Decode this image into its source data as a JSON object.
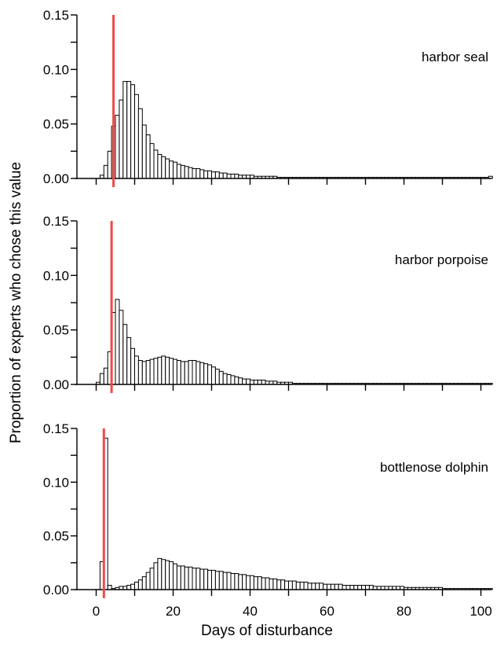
{
  "chart_data": {
    "type": "bar",
    "xlabel": "Days of disturbance",
    "ylabel": "Proportion of experts who chose this value",
    "xlim": [
      0,
      103
    ],
    "ylim": [
      0,
      0.15
    ],
    "x_ticks": [
      0,
      20,
      40,
      60,
      80,
      100
    ],
    "x_tick_labels": [
      "0",
      "20",
      "40",
      "60",
      "80",
      "100"
    ],
    "y_ticks": [
      0,
      0.05,
      0.1,
      0.15
    ],
    "y_tick_labels": [
      "0.00",
      "0.05",
      "0.10",
      "0.15"
    ],
    "bin_width": 1,
    "ref_line_color": "#f04a4a",
    "panels": [
      {
        "name": "harbor seal",
        "ref_line_x": 4.5,
        "bins": [
          [
            1,
            0.003
          ],
          [
            2,
            0.012
          ],
          [
            3,
            0.025
          ],
          [
            4,
            0.048
          ],
          [
            5,
            0.058
          ],
          [
            6,
            0.072
          ],
          [
            7,
            0.089
          ],
          [
            8,
            0.089
          ],
          [
            9,
            0.086
          ],
          [
            10,
            0.077
          ],
          [
            11,
            0.064
          ],
          [
            12,
            0.049
          ],
          [
            13,
            0.04
          ],
          [
            14,
            0.032
          ],
          [
            15,
            0.026
          ],
          [
            16,
            0.022
          ],
          [
            17,
            0.02
          ],
          [
            18,
            0.018
          ],
          [
            19,
            0.016
          ],
          [
            20,
            0.015
          ],
          [
            21,
            0.013
          ],
          [
            22,
            0.012
          ],
          [
            23,
            0.011
          ],
          [
            24,
            0.01
          ],
          [
            25,
            0.009
          ],
          [
            26,
            0.009
          ],
          [
            27,
            0.008
          ],
          [
            28,
            0.007
          ],
          [
            29,
            0.007
          ],
          [
            30,
            0.006
          ],
          [
            31,
            0.006
          ],
          [
            32,
            0.005
          ],
          [
            33,
            0.005
          ],
          [
            34,
            0.004
          ],
          [
            35,
            0.004
          ],
          [
            36,
            0.004
          ],
          [
            37,
            0.003
          ],
          [
            38,
            0.003
          ],
          [
            39,
            0.003
          ],
          [
            40,
            0.003
          ],
          [
            41,
            0.002
          ],
          [
            42,
            0.002
          ],
          [
            43,
            0.002
          ],
          [
            44,
            0.002
          ],
          [
            45,
            0.002
          ],
          [
            46,
            0.002
          ],
          [
            47,
            0.001
          ],
          [
            48,
            0.001
          ],
          [
            49,
            0.001
          ],
          [
            50,
            0.001
          ],
          [
            51,
            0.001
          ],
          [
            52,
            0.001
          ],
          [
            53,
            0.001
          ],
          [
            54,
            0.001
          ],
          [
            55,
            0.001
          ],
          [
            56,
            0.001
          ],
          [
            57,
            0.001
          ],
          [
            58,
            0.001
          ],
          [
            59,
            0.001
          ],
          [
            60,
            0.001
          ],
          [
            61,
            0.001
          ],
          [
            62,
            0.001
          ],
          [
            63,
            0.001
          ],
          [
            64,
            0.001
          ],
          [
            65,
            0.001
          ],
          [
            66,
            0.001
          ],
          [
            67,
            0.001
          ],
          [
            68,
            0.001
          ],
          [
            69,
            0.001
          ],
          [
            70,
            0.001
          ],
          [
            71,
            0.001
          ],
          [
            72,
            0.001
          ],
          [
            73,
            0.001
          ],
          [
            74,
            0.001
          ],
          [
            75,
            0.001
          ],
          [
            76,
            0.001
          ],
          [
            77,
            0.001
          ],
          [
            78,
            0.001
          ],
          [
            79,
            0.001
          ],
          [
            80,
            0.001
          ],
          [
            81,
            0.001
          ],
          [
            82,
            0.001
          ],
          [
            83,
            0.001
          ],
          [
            84,
            0.001
          ],
          [
            85,
            0.001
          ],
          [
            86,
            0.001
          ],
          [
            87,
            0.001
          ],
          [
            88,
            0.001
          ],
          [
            89,
            0.001
          ],
          [
            90,
            0.001
          ],
          [
            91,
            0.001
          ],
          [
            92,
            0.001
          ],
          [
            93,
            0.001
          ],
          [
            94,
            0.001
          ],
          [
            95,
            0.001
          ],
          [
            96,
            0.001
          ],
          [
            97,
            0.001
          ],
          [
            98,
            0.001
          ],
          [
            99,
            0.001
          ],
          [
            100,
            0.001
          ],
          [
            101,
            0.001
          ],
          [
            102,
            0.002
          ]
        ]
      },
      {
        "name": "harbor porpoise",
        "ref_line_x": 4,
        "bins": [
          [
            0,
            0.002
          ],
          [
            1,
            0.01
          ],
          [
            2,
            0.015
          ],
          [
            3,
            0.03
          ],
          [
            4,
            0.066
          ],
          [
            5,
            0.078
          ],
          [
            6,
            0.068
          ],
          [
            7,
            0.055
          ],
          [
            8,
            0.043
          ],
          [
            9,
            0.033
          ],
          [
            10,
            0.026
          ],
          [
            11,
            0.022
          ],
          [
            12,
            0.021
          ],
          [
            13,
            0.022
          ],
          [
            14,
            0.023
          ],
          [
            15,
            0.024
          ],
          [
            16,
            0.025
          ],
          [
            17,
            0.026
          ],
          [
            18,
            0.025
          ],
          [
            19,
            0.024
          ],
          [
            20,
            0.023
          ],
          [
            21,
            0.022
          ],
          [
            22,
            0.021
          ],
          [
            23,
            0.021
          ],
          [
            24,
            0.022
          ],
          [
            25,
            0.022
          ],
          [
            26,
            0.021
          ],
          [
            27,
            0.02
          ],
          [
            28,
            0.019
          ],
          [
            29,
            0.018
          ],
          [
            30,
            0.016
          ],
          [
            31,
            0.014
          ],
          [
            32,
            0.012
          ],
          [
            33,
            0.01
          ],
          [
            34,
            0.009
          ],
          [
            35,
            0.008
          ],
          [
            36,
            0.007
          ],
          [
            37,
            0.006
          ],
          [
            38,
            0.005
          ],
          [
            39,
            0.005
          ],
          [
            40,
            0.004
          ],
          [
            41,
            0.004
          ],
          [
            42,
            0.004
          ],
          [
            43,
            0.004
          ],
          [
            44,
            0.003
          ],
          [
            45,
            0.003
          ],
          [
            46,
            0.003
          ],
          [
            47,
            0.002
          ],
          [
            48,
            0.002
          ],
          [
            49,
            0.002
          ],
          [
            50,
            0.002
          ],
          [
            51,
            0.001
          ],
          [
            52,
            0.001
          ],
          [
            53,
            0.001
          ],
          [
            54,
            0.001
          ],
          [
            55,
            0.001
          ],
          [
            56,
            0.001
          ],
          [
            57,
            0.001
          ],
          [
            58,
            0.001
          ],
          [
            59,
            0.001
          ],
          [
            60,
            0.001
          ],
          [
            61,
            0.001
          ],
          [
            62,
            0.001
          ],
          [
            63,
            0.001
          ],
          [
            64,
            0.001
          ],
          [
            65,
            0.001
          ],
          [
            66,
            0.001
          ],
          [
            67,
            0.001
          ],
          [
            68,
            0.001
          ],
          [
            69,
            0.001
          ],
          [
            70,
            0.001
          ],
          [
            71,
            0.001
          ],
          [
            72,
            0.001
          ],
          [
            73,
            0.001
          ],
          [
            74,
            0.001
          ],
          [
            75,
            0.001
          ],
          [
            76,
            0.001
          ],
          [
            77,
            0.001
          ],
          [
            78,
            0.001
          ],
          [
            79,
            0.001
          ],
          [
            80,
            0.001
          ],
          [
            81,
            0.001
          ],
          [
            82,
            0.001
          ],
          [
            83,
            0.001
          ],
          [
            84,
            0.001
          ],
          [
            85,
            0.001
          ],
          [
            86,
            0.001
          ],
          [
            87,
            0.001
          ],
          [
            88,
            0.001
          ],
          [
            89,
            0.001
          ],
          [
            90,
            0.001
          ],
          [
            91,
            0.001
          ],
          [
            92,
            0.001
          ],
          [
            93,
            0.001
          ],
          [
            94,
            0.001
          ],
          [
            95,
            0.001
          ],
          [
            96,
            0.001
          ],
          [
            97,
            0.001
          ],
          [
            98,
            0.001
          ],
          [
            99,
            0.001
          ],
          [
            100,
            0.001
          ],
          [
            101,
            0.001
          ],
          [
            102,
            0.001
          ]
        ]
      },
      {
        "name": "bottlenose dolphin",
        "ref_line_x": 2,
        "bins": [
          [
            1,
            0.026
          ],
          [
            2,
            0.141
          ],
          [
            3,
            0.004
          ],
          [
            4,
            0.001
          ],
          [
            5,
            0.002
          ],
          [
            6,
            0.003
          ],
          [
            7,
            0.003
          ],
          [
            8,
            0.004
          ],
          [
            9,
            0.005
          ],
          [
            10,
            0.007
          ],
          [
            11,
            0.009
          ],
          [
            12,
            0.012
          ],
          [
            13,
            0.016
          ],
          [
            14,
            0.02
          ],
          [
            15,
            0.025
          ],
          [
            16,
            0.029
          ],
          [
            17,
            0.028
          ],
          [
            18,
            0.027
          ],
          [
            19,
            0.026
          ],
          [
            20,
            0.024
          ],
          [
            21,
            0.022
          ],
          [
            22,
            0.022
          ],
          [
            23,
            0.021
          ],
          [
            24,
            0.021
          ],
          [
            25,
            0.02
          ],
          [
            26,
            0.02
          ],
          [
            27,
            0.019
          ],
          [
            28,
            0.019
          ],
          [
            29,
            0.018
          ],
          [
            30,
            0.018
          ],
          [
            31,
            0.017
          ],
          [
            32,
            0.017
          ],
          [
            33,
            0.016
          ],
          [
            34,
            0.016
          ],
          [
            35,
            0.015
          ],
          [
            36,
            0.015
          ],
          [
            37,
            0.014
          ],
          [
            38,
            0.014
          ],
          [
            39,
            0.013
          ],
          [
            40,
            0.013
          ],
          [
            41,
            0.012
          ],
          [
            42,
            0.012
          ],
          [
            43,
            0.011
          ],
          [
            44,
            0.011
          ],
          [
            45,
            0.01
          ],
          [
            46,
            0.01
          ],
          [
            47,
            0.009
          ],
          [
            48,
            0.009
          ],
          [
            49,
            0.008
          ],
          [
            50,
            0.008
          ],
          [
            51,
            0.008
          ],
          [
            52,
            0.007
          ],
          [
            53,
            0.007
          ],
          [
            54,
            0.007
          ],
          [
            55,
            0.006
          ],
          [
            56,
            0.006
          ],
          [
            57,
            0.006
          ],
          [
            58,
            0.006
          ],
          [
            59,
            0.005
          ],
          [
            60,
            0.005
          ],
          [
            61,
            0.005
          ],
          [
            62,
            0.005
          ],
          [
            63,
            0.005
          ],
          [
            64,
            0.004
          ],
          [
            65,
            0.004
          ],
          [
            66,
            0.004
          ],
          [
            67,
            0.004
          ],
          [
            68,
            0.004
          ],
          [
            69,
            0.004
          ],
          [
            70,
            0.004
          ],
          [
            71,
            0.004
          ],
          [
            72,
            0.003
          ],
          [
            73,
            0.003
          ],
          [
            74,
            0.003
          ],
          [
            75,
            0.003
          ],
          [
            76,
            0.003
          ],
          [
            77,
            0.003
          ],
          [
            78,
            0.003
          ],
          [
            79,
            0.003
          ],
          [
            80,
            0.002
          ],
          [
            81,
            0.002
          ],
          [
            82,
            0.002
          ],
          [
            83,
            0.002
          ],
          [
            84,
            0.002
          ],
          [
            85,
            0.002
          ],
          [
            86,
            0.002
          ],
          [
            87,
            0.002
          ],
          [
            88,
            0.002
          ],
          [
            89,
            0.002
          ],
          [
            90,
            0.001
          ],
          [
            91,
            0.001
          ],
          [
            92,
            0.001
          ],
          [
            93,
            0.001
          ],
          [
            94,
            0.001
          ],
          [
            95,
            0.001
          ],
          [
            96,
            0.001
          ],
          [
            97,
            0.001
          ],
          [
            98,
            0.001
          ],
          [
            99,
            0.001
          ],
          [
            100,
            0.001
          ],
          [
            101,
            0.001
          ],
          [
            102,
            0.001
          ]
        ]
      }
    ]
  }
}
